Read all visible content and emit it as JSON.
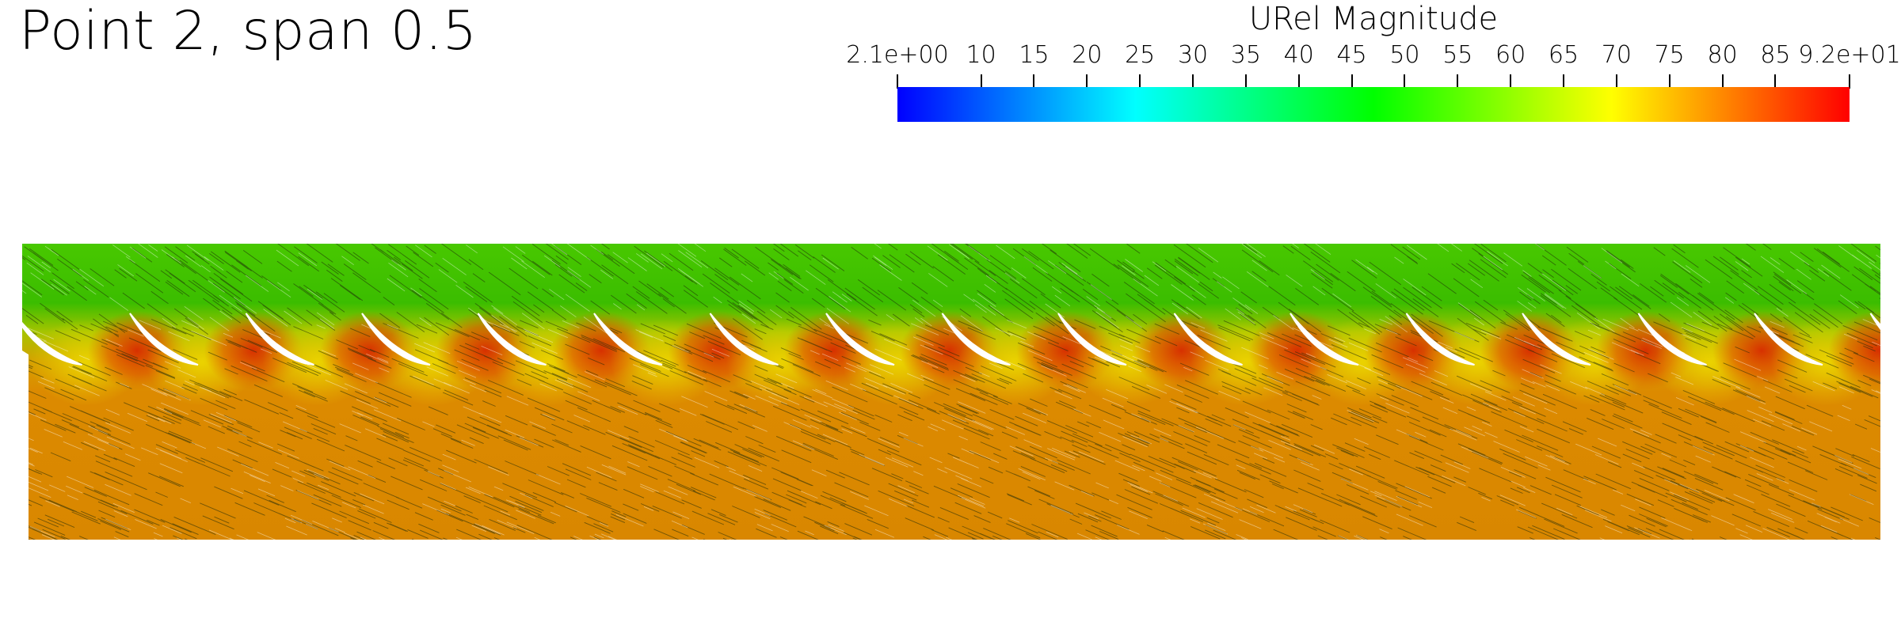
{
  "title": "Point 2, span 0.5",
  "legend": {
    "title": "URel Magnitude",
    "tick_labels": [
      "2.1e+00",
      "10",
      "15",
      "20",
      "25",
      "30",
      "35",
      "40",
      "45",
      "50",
      "55",
      "60",
      "65",
      "70",
      "75",
      "80",
      "85",
      "9.2e+01"
    ],
    "tick_values": [
      2.1,
      10,
      15,
      20,
      25,
      30,
      35,
      40,
      45,
      50,
      55,
      60,
      65,
      70,
      75,
      80,
      85,
      92
    ],
    "range": [
      2.1,
      92
    ],
    "colormap": [
      "#0000ff",
      "#00ffff",
      "#00ff00",
      "#ffff00",
      "#ff0000"
    ]
  },
  "field": {
    "top_color": "#3fc000",
    "bottom_color": "#dc8a00",
    "hot_color": "#d42b00",
    "blade_count": 16
  }
}
